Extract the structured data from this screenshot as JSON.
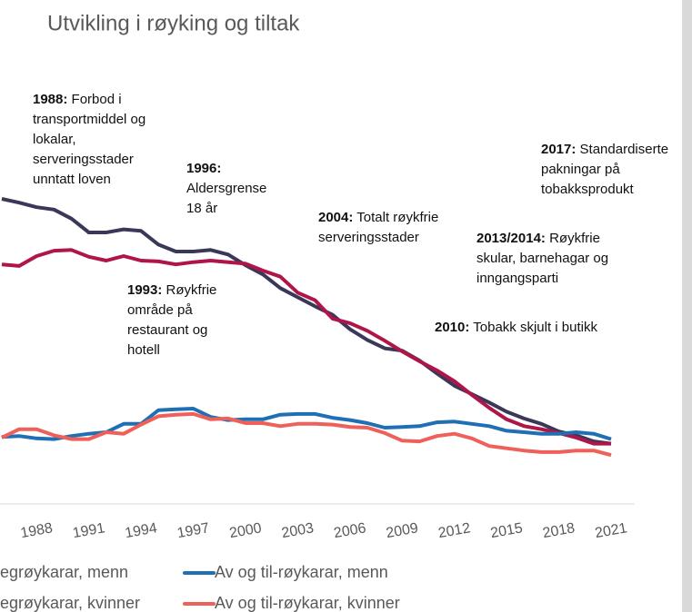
{
  "chart_data": {
    "type": "line",
    "title": "Utvikling i røyking og tiltak",
    "x": [
      1986,
      1987,
      1988,
      1989,
      1990,
      1991,
      1992,
      1993,
      1994,
      1995,
      1996,
      1997,
      1998,
      1999,
      2000,
      2001,
      2002,
      2003,
      2004,
      2005,
      2006,
      2007,
      2008,
      2009,
      2010,
      2011,
      2012,
      2013,
      2014,
      2015,
      2016,
      2017,
      2018,
      2019,
      2020,
      2021
    ],
    "xlim": [
      1986,
      2021
    ],
    "xticks": [
      1988,
      1991,
      1994,
      1997,
      2000,
      2003,
      2006,
      2009,
      2012,
      2015,
      2018,
      2021
    ],
    "ylim": [
      0,
      60
    ],
    "series": [
      {
        "name": "egrøykarar, menn",
        "color": "#3a3858",
        "values": [
          40.0,
          39.5,
          38.9,
          38.6,
          37.4,
          35.6,
          35.6,
          36.0,
          35.8,
          34.0,
          33.1,
          33.1,
          33.3,
          32.7,
          31.3,
          30.1,
          28.3,
          27.1,
          25.9,
          24.8,
          22.9,
          21.5,
          20.4,
          20.1,
          18.8,
          17.1,
          15.5,
          14.4,
          13.3,
          12.1,
          11.2,
          10.5,
          9.5,
          9.0,
          8.2,
          7.9
        ]
      },
      {
        "name": "egrøykarar, kvinner",
        "color": "#b0154a",
        "values": [
          31.4,
          31.2,
          32.5,
          33.2,
          33.3,
          32.4,
          31.9,
          32.5,
          31.9,
          31.8,
          31.4,
          31.7,
          31.9,
          31.7,
          31.5,
          30.6,
          29.8,
          27.7,
          26.7,
          24.3,
          23.7,
          22.7,
          21.4,
          20.0,
          18.7,
          17.5,
          16.1,
          14.3,
          12.6,
          11.1,
          10.2,
          9.8,
          9.3,
          8.7,
          7.9,
          7.9
        ]
      },
      {
        "name": "Av og til-røykarar, menn",
        "color": "#1f6fb4",
        "values": [
          8.8,
          8.9,
          8.6,
          8.5,
          8.9,
          9.2,
          9.4,
          10.5,
          10.5,
          12.3,
          12.4,
          12.5,
          11.4,
          11.0,
          11.1,
          11.1,
          11.7,
          11.8,
          11.8,
          11.3,
          11.0,
          10.6,
          10.0,
          10.1,
          10.2,
          10.7,
          10.8,
          10.5,
          10.2,
          9.6,
          9.4,
          9.2,
          9.2,
          9.4,
          9.2,
          8.5
        ]
      },
      {
        "name": "Av og til-røykarar, kvinner",
        "color": "#f0605a",
        "values": [
          8.7,
          9.8,
          9.8,
          9.0,
          8.5,
          8.5,
          9.4,
          9.2,
          10.4,
          11.5,
          11.7,
          11.8,
          11.1,
          11.2,
          10.6,
          10.6,
          10.2,
          10.5,
          10.5,
          10.4,
          10.1,
          10.0,
          9.3,
          8.3,
          8.2,
          8.9,
          9.2,
          8.6,
          7.6,
          7.3,
          7.0,
          6.8,
          6.8,
          7.0,
          7.0,
          6.4
        ]
      }
    ],
    "annotations": [
      {
        "bold": "1988:",
        "lines": [
          " Forbod i",
          "transportmiddel og",
          "lokalar,",
          "serveringsstader",
          "unntatt loven"
        ]
      },
      {
        "bold": "1996:",
        "lines": [
          "",
          "Aldersgrense",
          "18 år"
        ]
      },
      {
        "bold": "2004:",
        "lines": [
          " Totalt røykfrie",
          "serveringsstader"
        ]
      },
      {
        "bold": "1993:",
        "lines": [
          " Røykfrie",
          "område på",
          "restaurant og",
          "hotell"
        ]
      },
      {
        "bold": "2013/2014:",
        "lines": [
          " Røykfrie",
          "skular, barnehagar og",
          "inngangsparti"
        ]
      },
      {
        "bold": "2017:",
        "lines": [
          " Standardiserte",
          "pakningar på",
          "tobakksprodukt"
        ]
      },
      {
        "bold": "2010:",
        "lines": [
          " Tobakk skjult i butikk"
        ]
      }
    ]
  }
}
